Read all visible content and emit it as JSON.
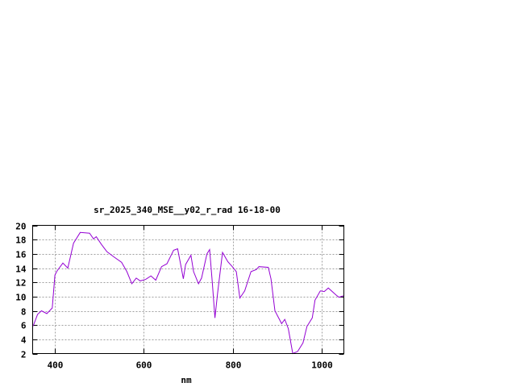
{
  "chart_data": {
    "type": "line",
    "title": "sr_2025_340_MSE__y02_r_rad 16-18-00",
    "xlabel": "nm",
    "ylabel": "",
    "xlim": [
      350,
      1050
    ],
    "ylim": [
      2,
      20
    ],
    "xticks": [
      400,
      600,
      800,
      1000
    ],
    "yticks": [
      2,
      4,
      6,
      8,
      10,
      12,
      14,
      16,
      18,
      20
    ],
    "grid": true,
    "line_color": "#9400d3",
    "series": [
      {
        "x": [
          350,
          352,
          361,
          370,
          382,
          394,
          400,
          405,
          418,
          429,
          442,
          457,
          478,
          487,
          493,
          505,
          517,
          532,
          550,
          562,
          573,
          583,
          592,
          604,
          616,
          627,
          640,
          652,
          667,
          676,
          683,
          689,
          694,
          706,
          712,
          723,
          730,
          742,
          748,
          754,
          760,
          766,
          777,
          789,
          799,
          808,
          816,
          827,
          841,
          853,
          859,
          880,
          886,
          895,
          910,
          917,
          925,
          935,
          946,
          958,
          967,
          979,
          985,
          997,
          1006,
          1015,
          1033,
          1039,
          1049
        ],
        "y": [
          5.8,
          6.0,
          7.5,
          8.0,
          7.6,
          8.4,
          13.0,
          13.6,
          14.7,
          14.0,
          17.5,
          19.0,
          18.9,
          18.1,
          18.4,
          17.3,
          16.3,
          15.6,
          14.8,
          13.5,
          11.8,
          12.6,
          12.2,
          12.4,
          12.9,
          12.3,
          14.2,
          14.6,
          16.5,
          16.7,
          14.5,
          12.5,
          14.5,
          15.8,
          13.5,
          11.8,
          12.6,
          16.0,
          16.6,
          12.0,
          7.0,
          10.5,
          16.2,
          14.9,
          14.2,
          13.5,
          9.8,
          10.8,
          13.5,
          13.8,
          14.2,
          14.1,
          12.5,
          8.0,
          6.2,
          6.8,
          5.5,
          2.0,
          2.3,
          3.5,
          5.8,
          7.0,
          9.5,
          10.8,
          10.7,
          11.2,
          10.2,
          9.9,
          10.1
        ]
      }
    ]
  }
}
